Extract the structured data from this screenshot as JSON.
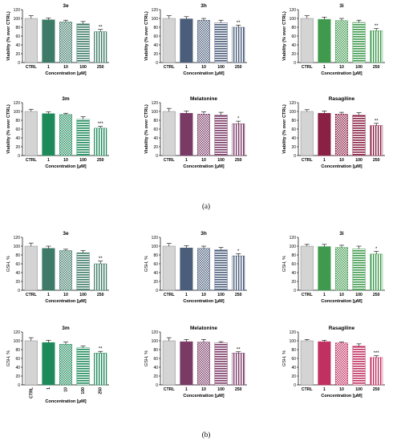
{
  "figure": {
    "label_a": "(a)",
    "label_b": "(b)"
  },
  "patterns": {
    "ctrl": "solid-grey",
    "d1": "solid",
    "d10": "checker",
    "d100": "horizontal-lines",
    "d250": "vertical-lines"
  },
  "chart_data": [
    {
      "type": "bar",
      "panel": "a",
      "title": "3e",
      "ylabel": "Viability (% over CTRL)",
      "xlabel": "Concentration [μM]",
      "categories": [
        "CTRL",
        "1",
        "10",
        "100",
        "250"
      ],
      "values": [
        100,
        97,
        92,
        88,
        70
      ],
      "errors": [
        6,
        4,
        4,
        5,
        5
      ],
      "significance": [
        "",
        "",
        "",
        "",
        "**"
      ],
      "ylim": [
        0,
        120
      ],
      "yticks": [
        0,
        20,
        40,
        60,
        80,
        100,
        120
      ],
      "color": "#3d7a67",
      "rotate_xticks": false
    },
    {
      "type": "bar",
      "panel": "a",
      "title": "3h",
      "ylabel": "Viability (% over CTRL)",
      "xlabel": "Concentration [μM]",
      "categories": [
        "CTRL",
        "1",
        "10",
        "100",
        "250"
      ],
      "values": [
        100,
        99,
        96,
        90,
        80
      ],
      "errors": [
        6,
        5,
        4,
        6,
        5
      ],
      "significance": [
        "",
        "",
        "",
        "",
        "**"
      ],
      "ylim": [
        0,
        120
      ],
      "yticks": [
        0,
        20,
        40,
        60,
        80,
        100,
        120
      ],
      "color": "#4a5d7a",
      "rotate_xticks": false
    },
    {
      "type": "bar",
      "panel": "a",
      "title": "3i",
      "ylabel": "Viability (% over CTRL)",
      "xlabel": "Concentration [μM]",
      "categories": [
        "CTRL",
        "1",
        "10",
        "100",
        "250"
      ],
      "values": [
        100,
        98,
        95,
        91,
        72
      ],
      "errors": [
        6,
        5,
        5,
        5,
        5
      ],
      "significance": [
        "",
        "",
        "",
        "",
        "**"
      ],
      "ylim": [
        0,
        120
      ],
      "yticks": [
        0,
        20,
        40,
        60,
        80,
        100,
        120
      ],
      "color": "#3f9a4d",
      "rotate_xticks": false
    },
    {
      "type": "bar",
      "panel": "a",
      "title": "3m",
      "ylabel": "Viability (% over CTRL)",
      "xlabel": "Concentration [μM]",
      "categories": [
        "CTRL",
        "1",
        "10",
        "100",
        "250"
      ],
      "values": [
        100,
        95,
        93,
        82,
        62
      ],
      "errors": [
        5,
        4,
        3,
        6,
        4
      ],
      "significance": [
        "",
        "",
        "",
        "",
        "***"
      ],
      "ylim": [
        0,
        120
      ],
      "yticks": [
        0,
        20,
        40,
        60,
        80,
        100,
        120
      ],
      "color": "#1e8a5a",
      "rotate_xticks": false
    },
    {
      "type": "bar",
      "panel": "a",
      "title": "Melatonine",
      "ylabel": "Viability (% over CTRL)",
      "xlabel": "Concentration [μM]",
      "categories": [
        "CTRL",
        "1",
        "10",
        "100",
        "250"
      ],
      "values": [
        100,
        96,
        94,
        92,
        72
      ],
      "errors": [
        7,
        5,
        5,
        6,
        6
      ],
      "significance": [
        "",
        "",
        "",
        "",
        "*"
      ],
      "ylim": [
        0,
        120
      ],
      "yticks": [
        0,
        20,
        40,
        60,
        80,
        100,
        120
      ],
      "color": "#7a3a66",
      "rotate_xticks": false
    },
    {
      "type": "bar",
      "panel": "a",
      "title": "Rasagiline",
      "ylabel": "Viability (% over CTRL)",
      "xlabel": "Concentration [μM]",
      "categories": [
        "CTRL",
        "1",
        "10",
        "100",
        "250"
      ],
      "values": [
        100,
        96,
        94,
        92,
        68
      ],
      "errors": [
        4,
        5,
        4,
        5,
        5
      ],
      "significance": [
        "",
        "",
        "",
        "",
        "**"
      ],
      "ylim": [
        0,
        120
      ],
      "yticks": [
        0,
        20,
        40,
        60,
        80,
        100,
        120
      ],
      "color": "#8a2044",
      "rotate_xticks": false
    },
    {
      "type": "bar",
      "panel": "b",
      "title": "3e",
      "ylabel": "GSH, %",
      "xlabel": "Concentration [μM]",
      "categories": [
        "CTRL",
        "1",
        "10",
        "100",
        "250"
      ],
      "values": [
        100,
        95,
        90,
        85,
        60
      ],
      "errors": [
        7,
        5,
        3,
        5,
        6
      ],
      "significance": [
        "",
        "",
        "",
        "",
        "**"
      ],
      "ylim": [
        0,
        120
      ],
      "yticks": [
        0,
        20,
        40,
        60,
        80,
        100,
        120
      ],
      "color": "#3d7a67",
      "rotate_xticks": false
    },
    {
      "type": "bar",
      "panel": "b",
      "title": "3h",
      "ylabel": "GSH, %",
      "xlabel": "Concentration [μM]",
      "categories": [
        "CTRL",
        "1",
        "10",
        "100",
        "250"
      ],
      "values": [
        100,
        96,
        95,
        92,
        78
      ],
      "errors": [
        6,
        5,
        5,
        5,
        5
      ],
      "significance": [
        "",
        "",
        "",
        "",
        "*"
      ],
      "ylim": [
        0,
        120
      ],
      "yticks": [
        0,
        20,
        40,
        60,
        80,
        100,
        120
      ],
      "color": "#4a5d7a",
      "rotate_xticks": false
    },
    {
      "type": "bar",
      "panel": "b",
      "title": "3i",
      "ylabel": "GSH, %",
      "xlabel": "Concentration [μM]",
      "categories": [
        "CTRL",
        "1",
        "10",
        "100",
        "250"
      ],
      "values": [
        100,
        99,
        97,
        94,
        82
      ],
      "errors": [
        4,
        5,
        5,
        6,
        6
      ],
      "significance": [
        "",
        "",
        "",
        "",
        "*"
      ],
      "ylim": [
        0,
        120
      ],
      "yticks": [
        0,
        20,
        40,
        60,
        80,
        100,
        120
      ],
      "color": "#3f9a4d",
      "rotate_xticks": false
    },
    {
      "type": "bar",
      "panel": "b",
      "title": "3m",
      "ylabel": "GSH, %",
      "xlabel": "Concentration [μM]",
      "categories": [
        "CTRL",
        "1",
        "10",
        "100",
        "250"
      ],
      "values": [
        100,
        96,
        92,
        84,
        72
      ],
      "errors": [
        7,
        5,
        5,
        4,
        4
      ],
      "significance": [
        "",
        "",
        "",
        "",
        "**"
      ],
      "ylim": [
        0,
        120
      ],
      "yticks": [
        0,
        20,
        40,
        60,
        80,
        100,
        120
      ],
      "color": "#1e8a5a",
      "rotate_xticks": true
    },
    {
      "type": "bar",
      "panel": "b",
      "title": "Melatonine",
      "ylabel": "GSH, %",
      "xlabel": "Concentration [μM]",
      "categories": [
        "CTRL",
        "1",
        "10",
        "100",
        "250"
      ],
      "values": [
        100,
        98,
        97,
        95,
        72
      ],
      "errors": [
        7,
        5,
        6,
        3,
        3
      ],
      "significance": [
        "",
        "",
        "",
        "",
        "**"
      ],
      "ylim": [
        0,
        120
      ],
      "yticks": [
        0,
        20,
        40,
        60,
        80,
        100,
        120
      ],
      "color": "#7a3a66",
      "rotate_xticks": false
    },
    {
      "type": "bar",
      "panel": "b",
      "title": "Rasagiline",
      "ylabel": "GSH, %",
      "xlabel": "Concentration [μM]",
      "categories": [
        "CTRL",
        "1",
        "10",
        "100",
        "250"
      ],
      "values": [
        100,
        98,
        95,
        88,
        62
      ],
      "errors": [
        3,
        3,
        2,
        5,
        4
      ],
      "significance": [
        "",
        "",
        "",
        "",
        "***"
      ],
      "ylim": [
        0,
        120
      ],
      "yticks": [
        0,
        20,
        40,
        60,
        80,
        100,
        120
      ],
      "color": "#c03060",
      "rotate_xticks": false
    }
  ]
}
